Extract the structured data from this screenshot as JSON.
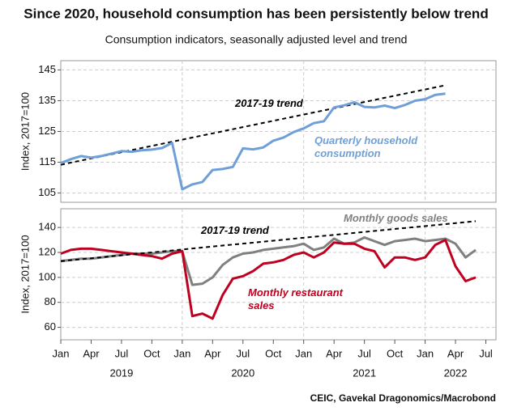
{
  "title": "Since 2020, household consumption has been persistently below trend",
  "subtitle": "Consumption indicators, seasonally adjusted level and trend",
  "source": "CEIC, Gavekal Dragonomics/Macrobond",
  "chart_data": [
    {
      "type": "line",
      "ylabel": "Index, 2017=100",
      "xlim": [
        "2019-01",
        "2022-08"
      ],
      "ylim": [
        102,
        148
      ],
      "yticks": [
        105,
        115,
        125,
        135,
        145
      ],
      "grid": true,
      "series": [
        {
          "name": "2017-19 trend",
          "color": "#000000",
          "dashed": true,
          "x": [
            "2019-01",
            "2022-03"
          ],
          "values": [
            114.2,
            140
          ]
        },
        {
          "name": "Quarterly household consumption",
          "color": "#6f9fd8",
          "x": [
            "2019-01",
            "2019-02",
            "2019-03",
            "2019-04",
            "2019-05",
            "2019-06",
            "2019-07",
            "2019-08",
            "2019-09",
            "2019-10",
            "2019-11",
            "2019-12",
            "2020-01",
            "2020-02",
            "2020-03",
            "2020-04",
            "2020-05",
            "2020-06",
            "2020-07",
            "2020-08",
            "2020-09",
            "2020-10",
            "2020-11",
            "2020-12",
            "2021-01",
            "2021-02",
            "2021-03",
            "2021-04",
            "2021-05",
            "2021-06",
            "2021-07",
            "2021-08",
            "2021-09",
            "2021-10",
            "2021-11",
            "2021-12",
            "2022-01",
            "2022-02",
            "2022-03"
          ],
          "values": [
            114.7,
            116,
            117,
            116.5,
            117,
            117.8,
            118.6,
            118.4,
            118.9,
            119.1,
            119.6,
            121.3,
            106.2,
            107.8,
            108.6,
            112.5,
            112.8,
            113.5,
            119.5,
            119.2,
            119.8,
            122,
            123,
            124.8,
            126,
            127.7,
            128.3,
            132.8,
            133.5,
            134.5,
            133,
            132.8,
            133.4,
            132.6,
            133.6,
            135,
            135.5,
            136.9,
            137.3
          ]
        }
      ]
    },
    {
      "type": "line",
      "ylabel": "Index, 2017=100",
      "xlim": [
        "2019-01",
        "2022-08"
      ],
      "ylim": [
        50,
        155
      ],
      "yticks": [
        60,
        80,
        100,
        120,
        140
      ],
      "grid": true,
      "xticks": [
        {
          "value": "2019-01",
          "label": "Jan"
        },
        {
          "value": "2019-04",
          "label": "Apr"
        },
        {
          "value": "2019-07",
          "label": "Jul"
        },
        {
          "value": "2019-10",
          "label": "Oct"
        },
        {
          "value": "2020-01",
          "label": "Jan"
        },
        {
          "value": "2020-04",
          "label": "Apr"
        },
        {
          "value": "2020-07",
          "label": "Jul"
        },
        {
          "value": "2020-10",
          "label": "Oct"
        },
        {
          "value": "2021-01",
          "label": "Jan"
        },
        {
          "value": "2021-04",
          "label": "Apr"
        },
        {
          "value": "2021-07",
          "label": "Jul"
        },
        {
          "value": "2021-10",
          "label": "Oct"
        },
        {
          "value": "2022-01",
          "label": "Jan"
        },
        {
          "value": "2022-04",
          "label": "Apr"
        },
        {
          "value": "2022-07",
          "label": "Jul"
        }
      ],
      "xtick_groups": [
        {
          "value": "2019-07",
          "label": "2019"
        },
        {
          "value": "2020-07",
          "label": "2020"
        },
        {
          "value": "2021-07",
          "label": "2021"
        },
        {
          "value": "2022-04",
          "label": "2022"
        }
      ],
      "series": [
        {
          "name": "Monthly goods sales",
          "color": "#808080",
          "x": [
            "2019-01",
            "2019-02",
            "2019-03",
            "2019-04",
            "2019-05",
            "2019-06",
            "2019-07",
            "2019-08",
            "2019-09",
            "2019-10",
            "2019-11",
            "2019-12",
            "2020-01",
            "2020-02",
            "2020-03",
            "2020-04",
            "2020-05",
            "2020-06",
            "2020-07",
            "2020-08",
            "2020-09",
            "2020-10",
            "2020-11",
            "2020-12",
            "2021-01",
            "2021-02",
            "2021-03",
            "2021-04",
            "2021-05",
            "2021-06",
            "2021-07",
            "2021-08",
            "2021-09",
            "2021-10",
            "2021-11",
            "2021-12",
            "2022-01",
            "2022-02",
            "2022-03",
            "2022-04",
            "2022-05",
            "2022-06"
          ],
          "values": [
            113,
            114,
            115,
            115,
            116,
            117,
            118,
            119,
            119,
            119,
            120,
            121,
            121,
            94,
            95,
            100,
            110,
            116,
            119,
            120,
            122,
            123,
            124,
            125,
            127,
            122,
            124,
            131,
            127,
            128,
            132,
            129,
            126,
            129,
            130,
            131,
            129,
            130,
            131,
            127,
            116,
            122
          ]
        },
        {
          "name": "Monthly restaurant sales",
          "color": "#c00020",
          "x": [
            "2019-01",
            "2019-02",
            "2019-03",
            "2019-04",
            "2019-05",
            "2019-06",
            "2019-07",
            "2019-08",
            "2019-09",
            "2019-10",
            "2019-11",
            "2019-12",
            "2020-01",
            "2020-02",
            "2020-03",
            "2020-04",
            "2020-05",
            "2020-06",
            "2020-07",
            "2020-08",
            "2020-09",
            "2020-10",
            "2020-11",
            "2020-12",
            "2021-01",
            "2021-02",
            "2021-03",
            "2021-04",
            "2021-05",
            "2021-06",
            "2021-07",
            "2021-08",
            "2021-09",
            "2021-10",
            "2021-11",
            "2021-12",
            "2022-01",
            "2022-02",
            "2022-03",
            "2022-04",
            "2022-05",
            "2022-06"
          ],
          "values": [
            119,
            122,
            123,
            123,
            122,
            121,
            120,
            119,
            118,
            117,
            115,
            119,
            121,
            69,
            71,
            67,
            86,
            99,
            101,
            105,
            111,
            112,
            114,
            118,
            120,
            116,
            120,
            128,
            127,
            127,
            123,
            121,
            108,
            116,
            116,
            114,
            116,
            126,
            130,
            109,
            97,
            100
          ]
        },
        {
          "name": "2017-19 trend",
          "color": "#000000",
          "dashed": true,
          "x": [
            "2019-01",
            "2022-06"
          ],
          "values": [
            113,
            145
          ]
        }
      ]
    }
  ]
}
